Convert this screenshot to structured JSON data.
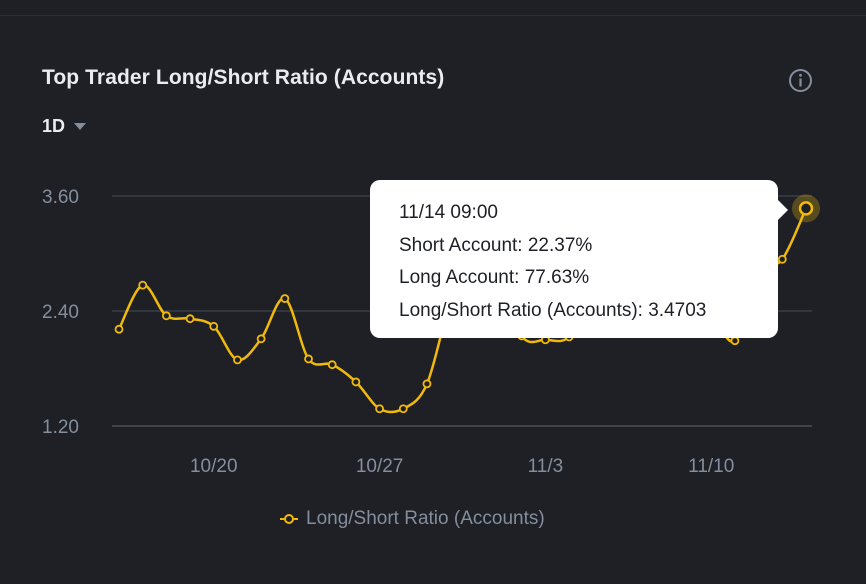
{
  "header": {
    "title": "Top Trader Long/Short Ratio (Accounts)",
    "info_icon": "info-circle-icon",
    "period_label": "1D",
    "period_icon": "caret-down-icon"
  },
  "colors": {
    "background": "#1e2026",
    "line": "#f0b90b",
    "grid": "#474d57",
    "axis_text": "#848e9c",
    "tooltip_bg": "#ffffff"
  },
  "tooltip": {
    "date": "11/14 09:00",
    "short_line": "Short Account: 22.37%",
    "long_line": "Long Account: 77.63%",
    "ratio_line": "Long/Short Ratio (Accounts): 3.4703"
  },
  "chart_data": {
    "type": "line",
    "title": "Top Trader Long/Short Ratio (Accounts)",
    "y_ticks": [
      "3.60",
      "2.40",
      "1.20"
    ],
    "x_ticks": [
      "10/20",
      "10/27",
      "11/3",
      "11/10"
    ],
    "ylim": [
      1.2,
      3.6
    ],
    "grid": true,
    "legend_position": "bottom",
    "series": [
      {
        "name": "Long/Short Ratio (Accounts)",
        "x": [
          "10/16",
          "10/17",
          "10/18",
          "10/19",
          "10/20",
          "10/21",
          "10/22",
          "10/23",
          "10/24",
          "10/25",
          "10/26",
          "10/27",
          "10/28",
          "10/29",
          "10/30",
          "10/31",
          "11/1",
          "11/2",
          "11/3",
          "11/4",
          "11/5",
          "11/6",
          "11/7",
          "11/8",
          "11/9",
          "11/10",
          "11/11",
          "11/12",
          "11/13",
          "11/14"
        ],
        "values": [
          2.21,
          2.67,
          2.35,
          2.32,
          2.24,
          1.89,
          2.11,
          2.53,
          1.9,
          1.84,
          1.66,
          1.38,
          1.38,
          1.64,
          2.52,
          3.1,
          2.8,
          2.14,
          2.1,
          2.13,
          2.55,
          2.8,
          2.85,
          2.9,
          2.7,
          2.4,
          2.09,
          2.8,
          2.94,
          3.4703
        ]
      }
    ]
  },
  "legend": {
    "label": "Long/Short Ratio (Accounts)"
  }
}
